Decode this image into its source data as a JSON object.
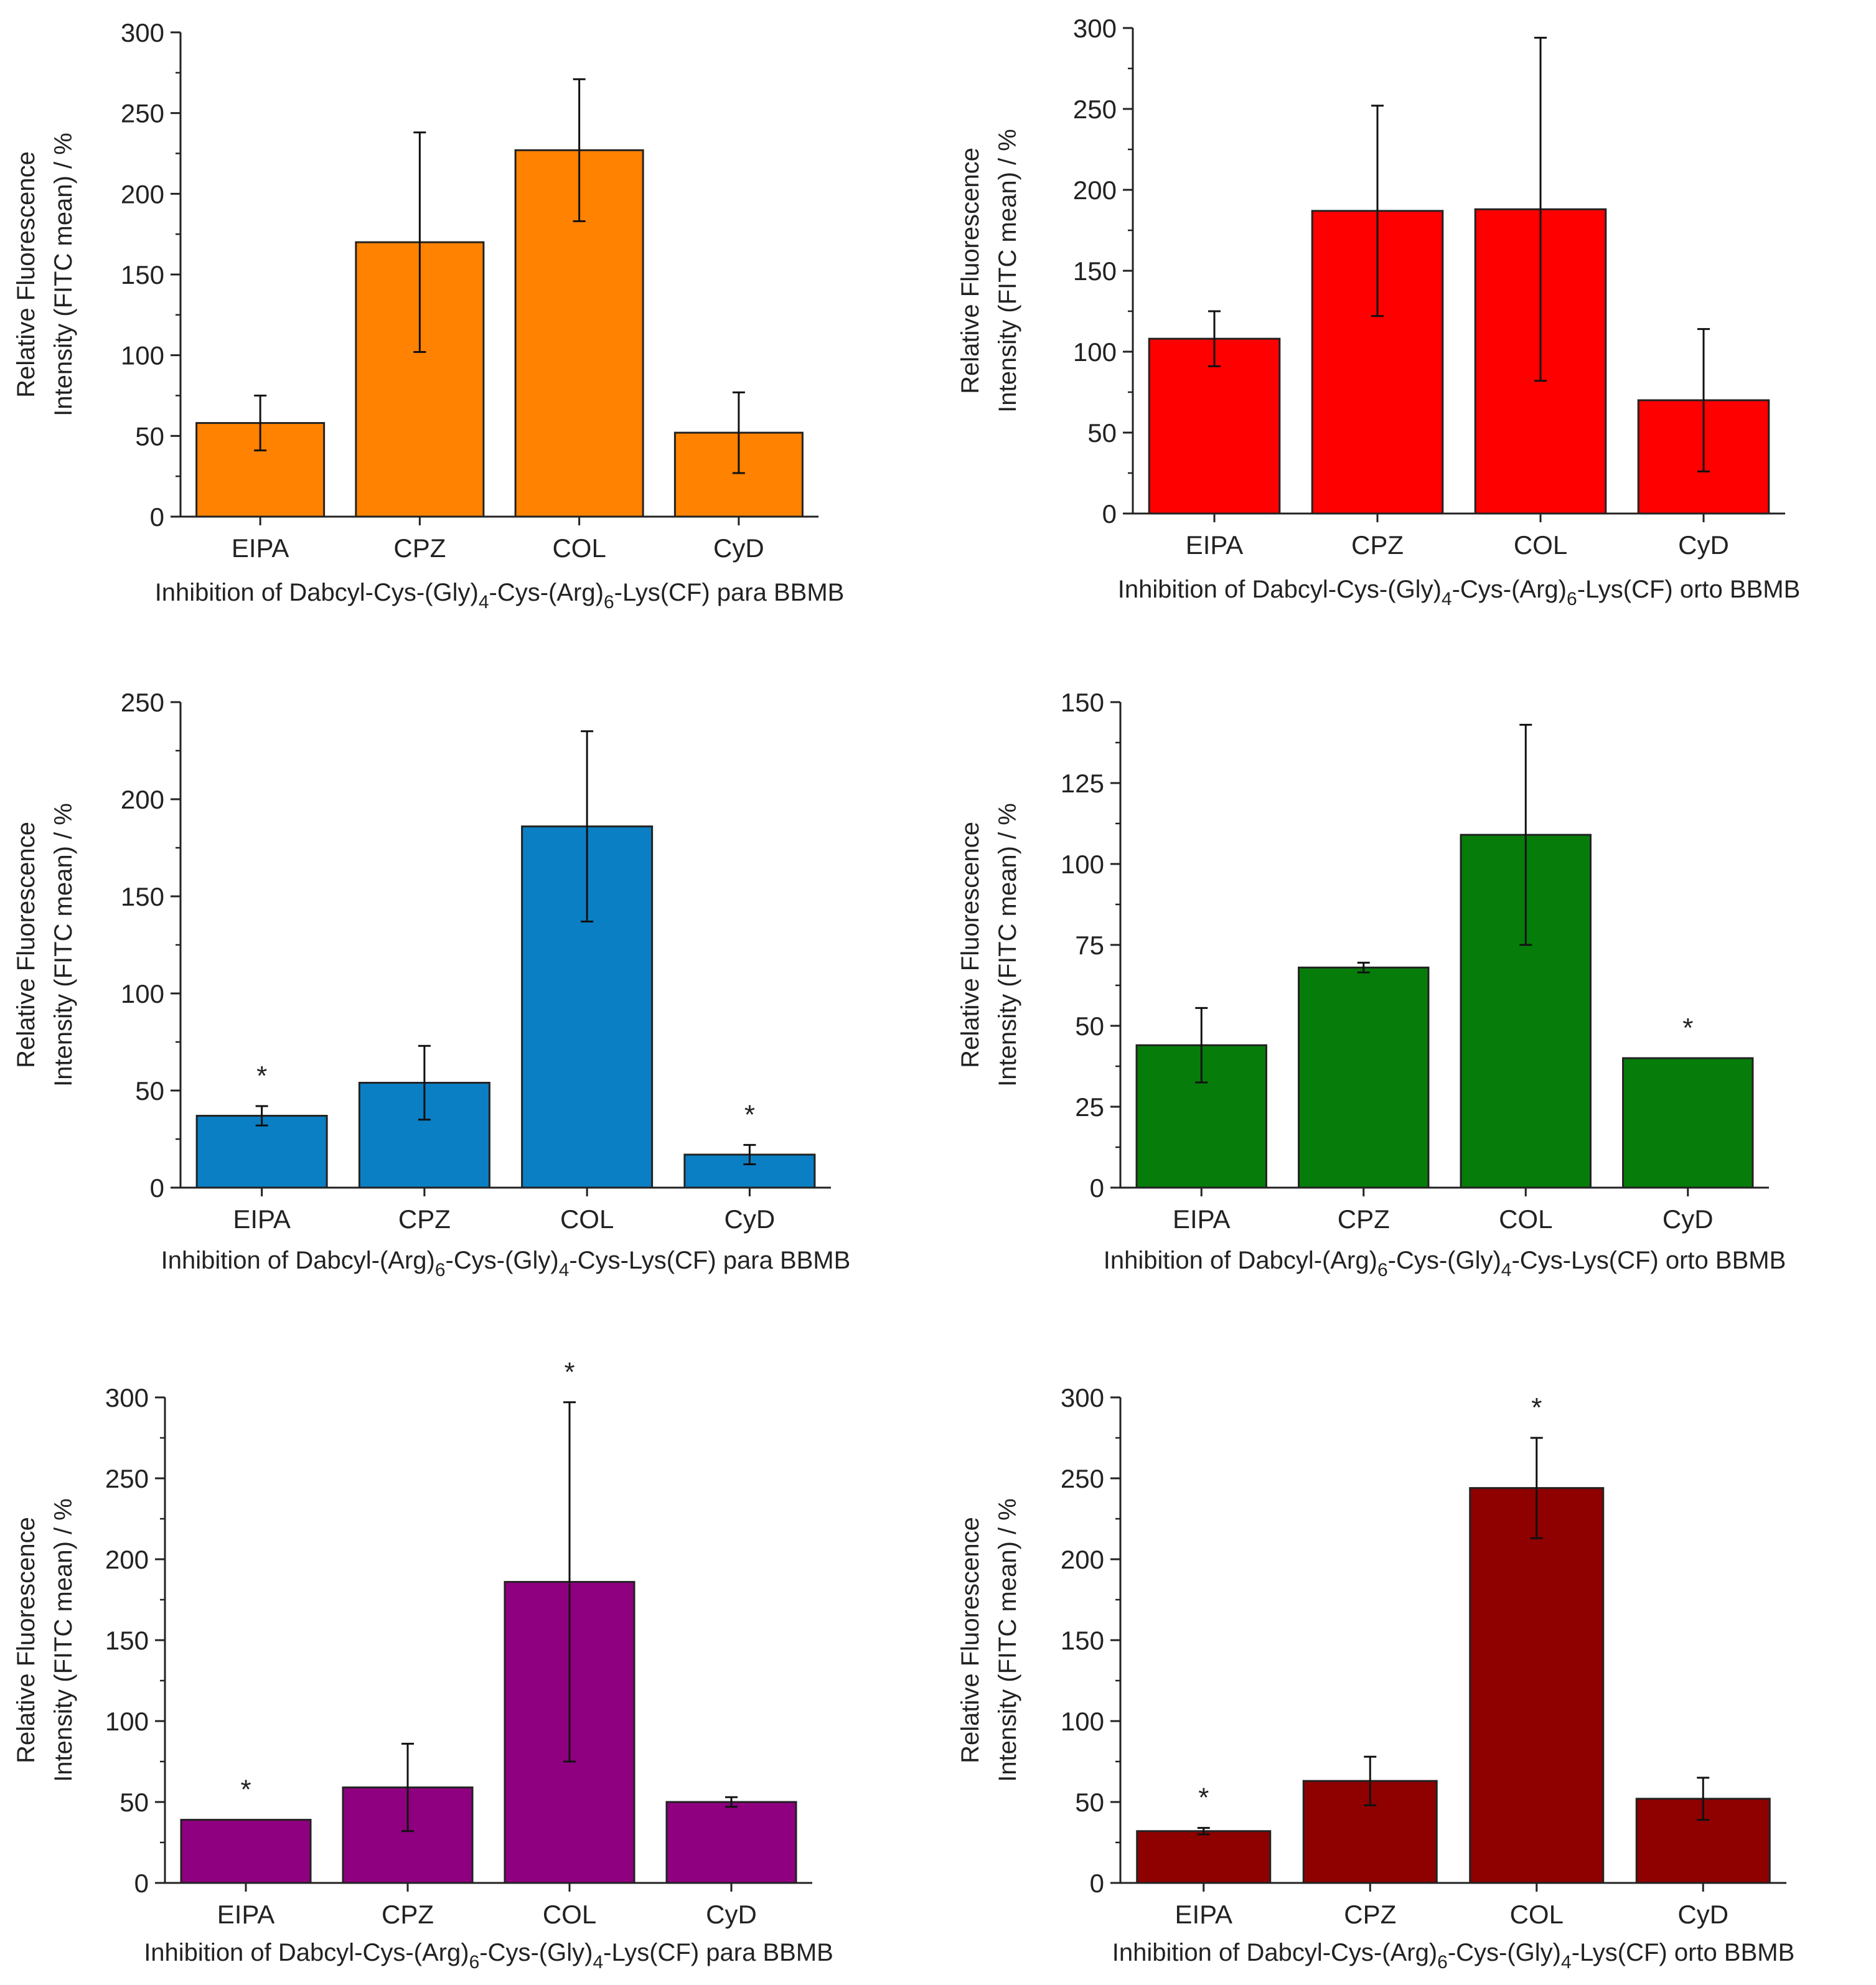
{
  "figure": {
    "name": "Six panel bar chart figure"
  },
  "chart_data": [
    {
      "type": "bar",
      "color": "#ff8200",
      "title": "",
      "ylabel_line1": "Relative Fluorescence",
      "ylabel_line2": "Intensity (FITC mean) / %",
      "xlabel": {
        "a": "Inhibition of Dabcyl-Cys-(Gly)",
        "sub1": "4",
        "b": "-Cys-(Arg)",
        "sub2": "6",
        "c": "-Lys(CF) para BBMB"
      },
      "categories": [
        "EIPA",
        "CPZ",
        "COL",
        "CyD"
      ],
      "values": [
        58,
        170,
        227,
        52
      ],
      "errors": [
        17,
        68,
        44,
        25
      ],
      "stars": [
        false,
        false,
        false,
        false
      ],
      "ylim": [
        0,
        300
      ],
      "yticks": [
        0,
        50,
        100,
        150,
        200,
        250,
        300
      ]
    },
    {
      "type": "bar",
      "color": "#ff0000",
      "title": "",
      "ylabel_line1": "Relative Fluorescence",
      "ylabel_line2": "Intensity (FITC mean) / %",
      "xlabel": {
        "a": "Inhibition of Dabcyl-Cys-(Gly)",
        "sub1": "4",
        "b": "-Cys-(Arg)",
        "sub2": "6",
        "c": "-Lys(CF) orto BBMB"
      },
      "categories": [
        "EIPA",
        "CPZ",
        "COL",
        "CyD"
      ],
      "values": [
        108,
        187,
        188,
        70
      ],
      "errors": [
        17,
        65,
        106,
        44
      ],
      "stars": [
        false,
        false,
        false,
        false
      ],
      "ylim": [
        0,
        300
      ],
      "yticks": [
        0,
        50,
        100,
        150,
        200,
        250,
        300
      ]
    },
    {
      "type": "bar",
      "color": "#0a7fc4",
      "title": "",
      "ylabel_line1": "Relative Fluorescence",
      "ylabel_line2": "Intensity (FITC mean) / %",
      "xlabel": {
        "a": "Inhibition of Dabcyl-(Arg)",
        "sub1": "6",
        "b": "-Cys-(Gly)",
        "sub2": "4",
        "c": "-Cys-Lys(CF) para BBMB"
      },
      "categories": [
        "EIPA",
        "CPZ",
        "COL",
        "CyD"
      ],
      "values": [
        37,
        54,
        186,
        17
      ],
      "errors": [
        5,
        19,
        49,
        5
      ],
      "stars": [
        true,
        false,
        false,
        true
      ],
      "ylim": [
        0,
        250
      ],
      "yticks": [
        0,
        50,
        100,
        150,
        200,
        250
      ]
    },
    {
      "type": "bar",
      "color": "#067d0a",
      "title": "",
      "ylabel_line1": "Relative Fluorescence",
      "ylabel_line2": "Intensity (FITC mean) / %",
      "xlabel": {
        "a": "Inhibition of Dabcyl-(Arg)",
        "sub1": "6",
        "b": "-Cys-(Gly)",
        "sub2": "4",
        "c": "-Cys-Lys(CF) orto BBMB"
      },
      "categories": [
        "EIPA",
        "CPZ",
        "COL",
        "CyD"
      ],
      "values": [
        44,
        68,
        109,
        40
      ],
      "errors": [
        11.5,
        1.5,
        34,
        0
      ],
      "stars": [
        false,
        false,
        false,
        true
      ],
      "ylim": [
        0,
        150
      ],
      "yticks": [
        0,
        25,
        50,
        75,
        100,
        125,
        150
      ]
    },
    {
      "type": "bar",
      "color": "#8f0080",
      "title": "",
      "ylabel_line1": "Relative Fluorescence",
      "ylabel_line2": "Intensity (FITC mean) / %",
      "xlabel": {
        "a": "Inhibition of Dabcyl-Cys-(Arg)",
        "sub1": "6",
        "b": "-Cys-(Gly)",
        "sub2": "4",
        "c": "-Lys(CF) para BBMB"
      },
      "categories": [
        "EIPA",
        "CPZ",
        "COL",
        "CyD"
      ],
      "values": [
        39,
        59,
        186,
        50
      ],
      "errors": [
        0,
        27,
        111,
        3
      ],
      "stars": [
        true,
        false,
        true,
        false
      ],
      "ylim": [
        0,
        300
      ],
      "yticks": [
        0,
        50,
        100,
        150,
        200,
        250,
        300
      ]
    },
    {
      "type": "bar",
      "color": "#8f0000",
      "title": "",
      "ylabel_line1": "Relative Fluorescence",
      "ylabel_line2": "Intensity (FITC mean) / %",
      "xlabel": {
        "a": "Inhibition of Dabcyl-Cys-(Arg)",
        "sub1": "6",
        "b": "-Cys-(Gly)",
        "sub2": "4",
        "c": "-Lys(CF) orto BBMB"
      },
      "categories": [
        "EIPA",
        "CPZ",
        "COL",
        "CyD"
      ],
      "values": [
        32,
        63,
        244,
        52
      ],
      "errors": [
        2,
        15,
        31,
        13
      ],
      "stars": [
        true,
        false,
        true,
        false
      ],
      "ylim": [
        0,
        300
      ],
      "yticks": [
        0,
        50,
        100,
        150,
        200,
        250,
        300
      ]
    }
  ]
}
